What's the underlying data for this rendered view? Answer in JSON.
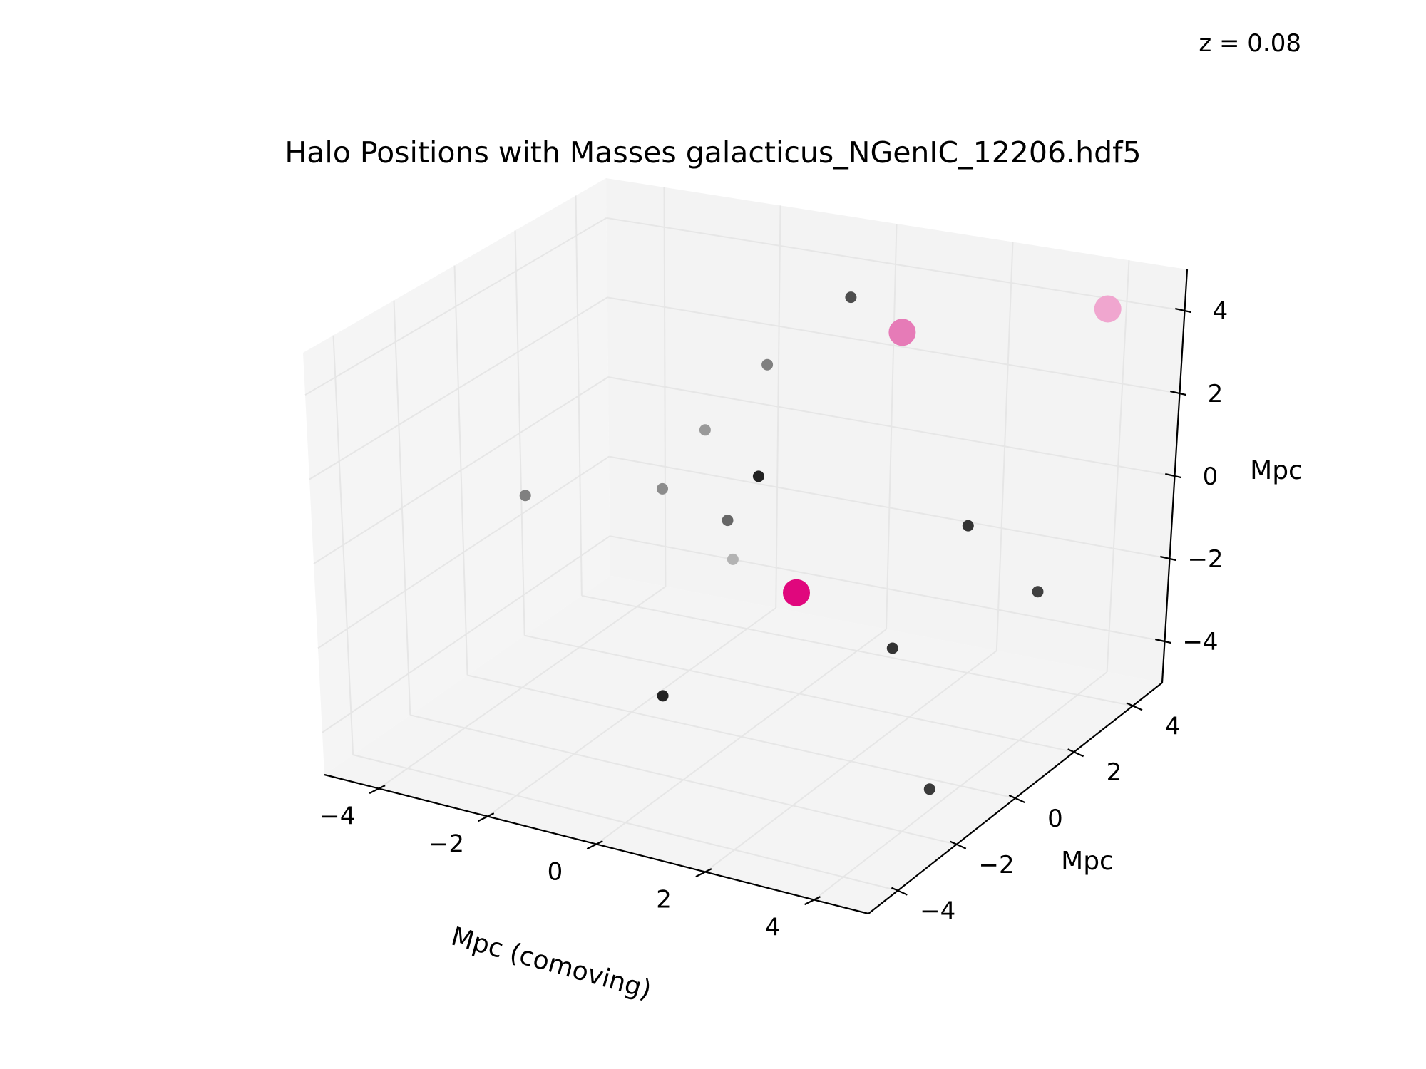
{
  "redshift_label": "z = 0.08",
  "chart_data": {
    "type": "scatter3d",
    "title": "Halo Positions with Masses galacticus_NGenIC_12206.hdf5",
    "xlabel": "Mpc (comoving)",
    "ylabel": "Mpc",
    "zlabel": "Mpc",
    "xlim": [
      -5,
      5
    ],
    "ylim": [
      -5,
      5
    ],
    "zlim": [
      -5,
      5
    ],
    "xticks": [
      "−4",
      "−2",
      "0",
      "2",
      "4"
    ],
    "yticks": [
      "−4",
      "−2",
      "0",
      "2",
      "4"
    ],
    "zticks": [
      "−4",
      "−2",
      "0",
      "2",
      "4"
    ],
    "grid": true,
    "pane_color": "#f2f2f2",
    "grid_color": "#e6e6e6",
    "points": [
      {
        "x": 0.3,
        "y": 3.0,
        "z": 4.6,
        "color": "#4d4d4d",
        "size": "small"
      },
      {
        "x": -0.5,
        "y": 1.8,
        "z": 3.4,
        "color": "#808080",
        "size": "small"
      },
      {
        "x": 3.5,
        "y": 1.0,
        "z": 1.3,
        "color": "#333333",
        "size": "small"
      },
      {
        "x": 0.6,
        "y": -0.5,
        "z": 2.5,
        "color": "#222222",
        "size": "small"
      },
      {
        "x": 4.5,
        "y": 1.5,
        "z": -0.5,
        "color": "#404040",
        "size": "small"
      },
      {
        "x": -2.5,
        "y": 3.5,
        "z": 0.1,
        "color": "#999999",
        "size": "small"
      },
      {
        "x": -2.2,
        "y": 1.5,
        "z": -0.2,
        "color": "#8c8c8c",
        "size": "small"
      },
      {
        "x": -4.5,
        "y": 1.2,
        "z": -1.0,
        "color": "#808080",
        "size": "small"
      },
      {
        "x": -2.0,
        "y": 3.5,
        "z": -3.0,
        "color": "#b3b3b3",
        "size": "small"
      },
      {
        "x": -0.5,
        "y": 0.5,
        "z": 0.2,
        "color": "#666666",
        "size": "small"
      },
      {
        "x": 2.2,
        "y": 1.0,
        "z": -2.5,
        "color": "#333333",
        "size": "small"
      },
      {
        "x": 0.2,
        "y": -3.0,
        "z": -2.0,
        "color": "#222222",
        "size": "small"
      },
      {
        "x": 4.5,
        "y": -2.0,
        "z": -3.5,
        "color": "#3a3a3a",
        "size": "small"
      },
      {
        "x": 1.2,
        "y": 3.0,
        "z": 4.0,
        "color": "#e67bb7",
        "size": "large"
      },
      {
        "x": 4.2,
        "y": 4.0,
        "z": 4.7,
        "color": "#f0a6cf",
        "size": "large"
      },
      {
        "x": 1.0,
        "y": 0.0,
        "z": -0.8,
        "color": "#e0077d",
        "size": "large"
      }
    ]
  }
}
